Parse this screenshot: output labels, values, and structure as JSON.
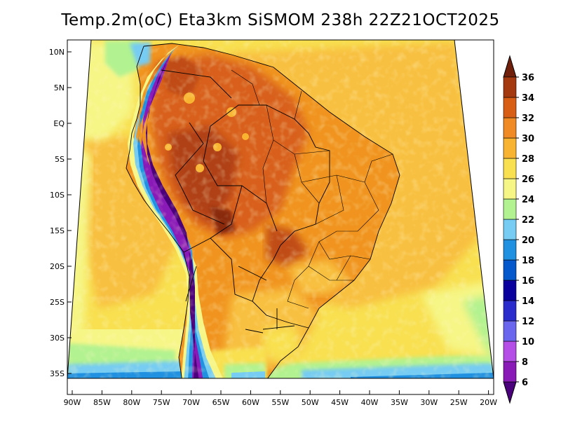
{
  "title": "Temp.2m(oC) Eta3km SiSMOM 238h 22Z21OCT2025",
  "map": {
    "variable": "2 m air temperature",
    "units": "oC",
    "longitude_labels": [
      "90W",
      "85W",
      "80W",
      "75W",
      "70W",
      "65W",
      "60W",
      "55W",
      "50W",
      "45W",
      "40W",
      "35W",
      "30W",
      "25W",
      "20W"
    ],
    "latitude_labels": [
      "10N",
      "5N",
      "EQ",
      "5S",
      "10S",
      "15S",
      "20S",
      "25S",
      "30S",
      "35S"
    ]
  },
  "colorbar": {
    "levels": [
      "6",
      "8",
      "10",
      "12",
      "14",
      "16",
      "18",
      "20",
      "22",
      "24",
      "26",
      "28",
      "30",
      "32",
      "34",
      "36"
    ],
    "colors": [
      "#4a007a",
      "#8a1ab8",
      "#b44ee6",
      "#6a66ee",
      "#2a2ccc",
      "#0a009e",
      "#0458cc",
      "#2090e0",
      "#76ccf2",
      "#b2f290",
      "#f6f686",
      "#f8e050",
      "#f8b430",
      "#f08a24",
      "#d85e16",
      "#a4380e",
      "#70200a"
    ]
  }
}
